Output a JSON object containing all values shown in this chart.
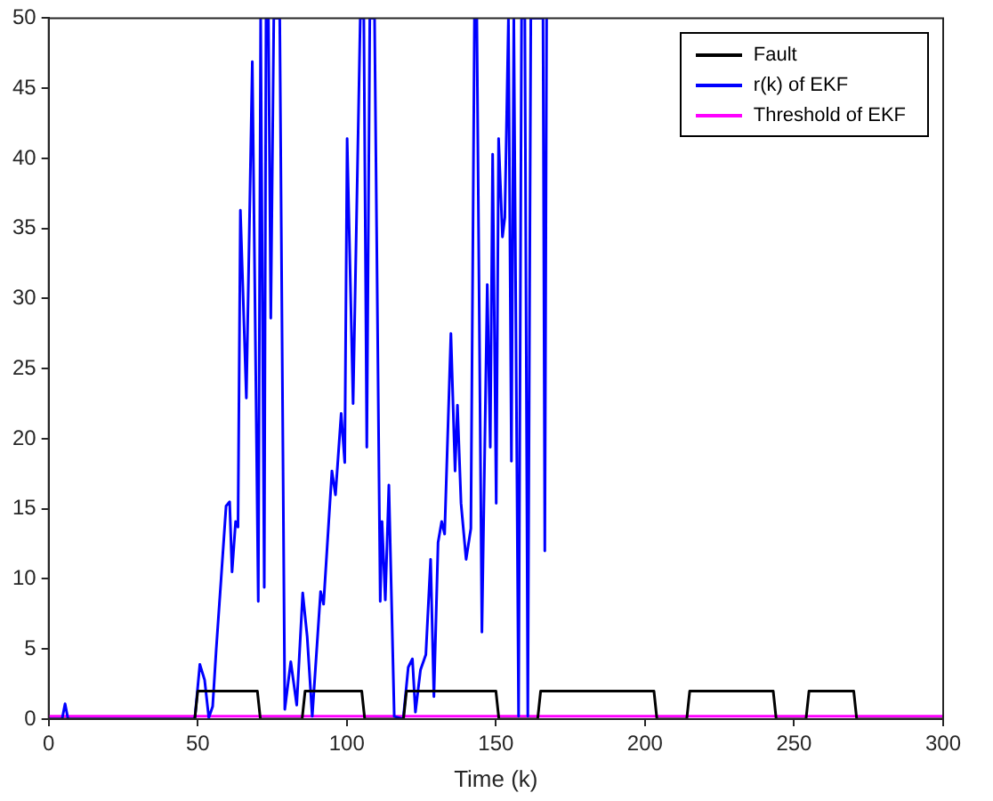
{
  "chart_data": {
    "type": "line",
    "xlabel": "Time (k)",
    "xlim": [
      0,
      300
    ],
    "xticks": [
      0,
      50,
      100,
      150,
      200,
      250,
      300
    ],
    "ylim": [
      0,
      50
    ],
    "yticks": [
      0,
      5,
      10,
      15,
      20,
      25,
      30,
      35,
      40,
      45,
      50
    ],
    "grid": false,
    "legend": "top right",
    "marker": "none",
    "line_style": "solid",
    "series": [
      {
        "name": "Fault",
        "color": "#000000",
        "x": [
          0,
          49,
          50,
          70,
          71,
          85,
          86,
          105,
          106,
          119,
          120,
          150,
          151,
          164,
          165,
          203,
          204,
          214,
          215,
          243,
          244,
          254,
          255,
          270,
          271,
          300
        ],
        "values": [
          0,
          0,
          2,
          2,
          0,
          0,
          2,
          2,
          0,
          0,
          2,
          2,
          0,
          0,
          2,
          2,
          0,
          0,
          2,
          2,
          0,
          0,
          2,
          2,
          0,
          0
        ]
      },
      {
        "name": "r(k) of EKF",
        "color": "#0000ff",
        "x": [
          0,
          4.5,
          5.5,
          6.5,
          49,
          50.7,
          52.3,
          53.7,
          55,
          56.2,
          57.7,
          59.5,
          60.7,
          61.5,
          62.7,
          63.5,
          64.3,
          66.3,
          68.3,
          70.3,
          71.1,
          72.3,
          72.9,
          73.7,
          74.5,
          75.5,
          77.5,
          79.2,
          81.2,
          83.2,
          85.2,
          86.7,
          88.4,
          91.2,
          92.2,
          95,
          96.2,
          98.1,
          99.3,
          100.1,
          102.1,
          104.5,
          105.7,
          106.7,
          107.7,
          109.3,
          111.2,
          111.8,
          112.9,
          114.1,
          115.9,
          118.9,
          120.6,
          122,
          123,
          124.7,
          126.5,
          128.1,
          129.2,
          130.6,
          131.8,
          132.8,
          134.9,
          136.3,
          137.1,
          138.3,
          140,
          141.6,
          142.8,
          143.6,
          145.3,
          147.1,
          148.1,
          148.9,
          150.1,
          150.9,
          152.2,
          153,
          154.2,
          155.2,
          156,
          157.6,
          158.6,
          159.7,
          160.7,
          161.7,
          165.8,
          166.4,
          167
        ],
        "values": [
          0,
          0,
          1.1,
          0,
          0,
          3.9,
          2.8,
          0.1,
          0.9,
          5,
          9.6,
          15.2,
          15.5,
          10.5,
          14.1,
          13.7,
          36.3,
          22.9,
          46.9,
          8.4,
          50,
          9.4,
          50,
          50,
          28.6,
          50,
          50,
          0.7,
          4.1,
          1,
          9,
          5.9,
          0.2,
          9.1,
          8.2,
          17.7,
          16,
          21.8,
          18.3,
          41.4,
          22.5,
          50,
          50,
          19.4,
          50,
          50,
          8.4,
          14.1,
          8.5,
          16.7,
          0.2,
          0,
          3.7,
          4.3,
          0.5,
          3.5,
          4.6,
          11.4,
          1.6,
          12.6,
          14.1,
          13.2,
          27.5,
          17.7,
          22.4,
          15.4,
          11.4,
          13.6,
          50,
          50,
          6.2,
          31,
          19.4,
          40.3,
          15.4,
          41.4,
          34.4,
          35.8,
          50,
          18.4,
          50,
          0.2,
          50,
          50,
          0.2,
          50,
          50,
          12,
          50
        ]
      },
      {
        "name": "Threshold of EKF",
        "color": "#ff00ff",
        "x": [
          0,
          300
        ],
        "values": [
          0.2,
          0.2
        ]
      }
    ]
  }
}
